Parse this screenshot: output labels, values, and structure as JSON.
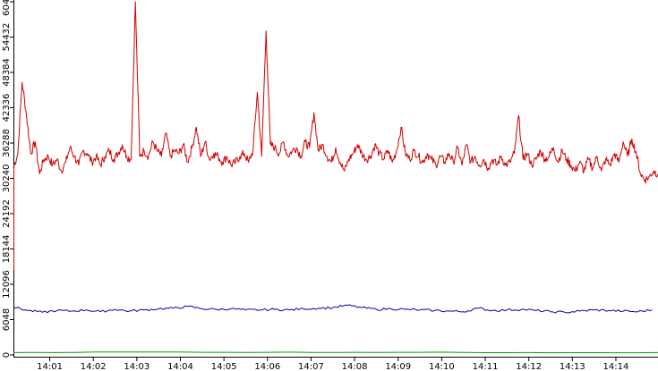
{
  "chart_data": {
    "type": "line",
    "x_ticks": [
      "14:01",
      "14:02",
      "14:03",
      "14:04",
      "14:05",
      "14:06",
      "14:07",
      "14:08",
      "14:09",
      "14:10",
      "14:11",
      "14:12",
      "14:13",
      "14:14"
    ],
    "y_ticks": [
      "0",
      "6048",
      "12096",
      "18144",
      "24192",
      "30240",
      "36288",
      "42336",
      "48384",
      "54432",
      "60480"
    ],
    "ylim": [
      0,
      60480
    ],
    "xlim": [
      "14:00:10",
      "14:14:58"
    ],
    "grid": false,
    "series": [
      {
        "color": "#d00000",
        "samples_per_step": 6,
        "points": [
          [
            "14:00:10",
            32000
          ],
          [
            "14:00:16",
            34500
          ],
          [
            "14:00:22",
            46700
          ],
          [
            "14:00:28",
            41000
          ],
          [
            "14:00:34",
            34500
          ],
          [
            "14:00:40",
            36500
          ],
          [
            "14:00:46",
            31000
          ],
          [
            "14:00:52",
            33500
          ],
          [
            "14:00:58",
            34000
          ],
          [
            "14:01:04",
            32500
          ],
          [
            "14:01:10",
            33500
          ],
          [
            "14:01:16",
            31500
          ],
          [
            "14:01:22",
            33000
          ],
          [
            "14:01:28",
            35500
          ],
          [
            "14:01:34",
            34000
          ],
          [
            "14:01:40",
            32500
          ],
          [
            "14:01:46",
            35000
          ],
          [
            "14:01:52",
            34500
          ],
          [
            "14:01:58",
            33000
          ],
          [
            "14:02:04",
            34000
          ],
          [
            "14:02:10",
            32500
          ],
          [
            "14:02:16",
            34000
          ],
          [
            "14:02:22",
            35000
          ],
          [
            "14:02:28",
            33500
          ],
          [
            "14:02:34",
            34500
          ],
          [
            "14:02:40",
            36000
          ],
          [
            "14:02:46",
            34000
          ],
          [
            "14:02:52",
            33500
          ],
          [
            "14:02:58",
            60480
          ],
          [
            "14:03:04",
            34000
          ],
          [
            "14:03:10",
            35000
          ],
          [
            "14:03:16",
            34000
          ],
          [
            "14:03:22",
            36500
          ],
          [
            "14:03:28",
            35000
          ],
          [
            "14:03:34",
            34000
          ],
          [
            "14:03:40",
            38000
          ],
          [
            "14:03:46",
            34000
          ],
          [
            "14:03:52",
            35000
          ],
          [
            "14:03:58",
            34500
          ],
          [
            "14:04:04",
            36000
          ],
          [
            "14:04:10",
            33000
          ],
          [
            "14:04:16",
            35500
          ],
          [
            "14:04:22",
            39000
          ],
          [
            "14:04:28",
            34000
          ],
          [
            "14:04:34",
            36500
          ],
          [
            "14:04:40",
            33500
          ],
          [
            "14:04:46",
            34500
          ],
          [
            "14:04:52",
            34000
          ],
          [
            "14:04:58",
            33000
          ],
          [
            "14:05:04",
            34000
          ],
          [
            "14:05:10",
            32500
          ],
          [
            "14:05:16",
            33000
          ],
          [
            "14:05:22",
            34000
          ],
          [
            "14:05:28",
            34500
          ],
          [
            "14:05:34",
            33000
          ],
          [
            "14:05:40",
            35000
          ],
          [
            "14:05:46",
            45000
          ],
          [
            "14:05:52",
            34000
          ],
          [
            "14:05:58",
            55500
          ],
          [
            "14:06:04",
            36000
          ],
          [
            "14:06:10",
            35500
          ],
          [
            "14:06:16",
            34500
          ],
          [
            "14:06:22",
            36500
          ],
          [
            "14:06:28",
            34000
          ],
          [
            "14:06:34",
            35000
          ],
          [
            "14:06:40",
            35500
          ],
          [
            "14:06:46",
            34000
          ],
          [
            "14:06:52",
            36500
          ],
          [
            "14:06:58",
            35500
          ],
          [
            "14:07:04",
            41500
          ],
          [
            "14:07:10",
            35000
          ],
          [
            "14:07:16",
            36000
          ],
          [
            "14:07:22",
            34000
          ],
          [
            "14:07:28",
            33000
          ],
          [
            "14:07:34",
            35500
          ],
          [
            "14:07:40",
            33000
          ],
          [
            "14:07:46",
            31500
          ],
          [
            "14:07:52",
            33500
          ],
          [
            "14:07:58",
            34500
          ],
          [
            "14:08:04",
            36000
          ],
          [
            "14:08:10",
            34500
          ],
          [
            "14:08:16",
            33500
          ],
          [
            "14:08:22",
            34000
          ],
          [
            "14:08:28",
            36000
          ],
          [
            "14:08:34",
            34500
          ],
          [
            "14:08:40",
            33500
          ],
          [
            "14:08:46",
            35000
          ],
          [
            "14:08:52",
            33000
          ],
          [
            "14:08:58",
            35000
          ],
          [
            "14:09:04",
            39000
          ],
          [
            "14:09:10",
            34500
          ],
          [
            "14:09:16",
            33500
          ],
          [
            "14:09:22",
            35000
          ],
          [
            "14:09:28",
            34000
          ],
          [
            "14:09:34",
            33000
          ],
          [
            "14:09:40",
            34500
          ],
          [
            "14:09:46",
            33500
          ],
          [
            "14:09:52",
            32500
          ],
          [
            "14:09:58",
            34000
          ],
          [
            "14:10:04",
            33000
          ],
          [
            "14:10:10",
            34500
          ],
          [
            "14:10:16",
            33000
          ],
          [
            "14:10:22",
            35500
          ],
          [
            "14:10:28",
            32500
          ],
          [
            "14:10:34",
            36000
          ],
          [
            "14:10:40",
            33000
          ],
          [
            "14:10:46",
            34000
          ],
          [
            "14:10:52",
            32500
          ],
          [
            "14:10:58",
            33500
          ],
          [
            "14:11:04",
            32000
          ],
          [
            "14:11:10",
            33500
          ],
          [
            "14:11:16",
            32500
          ],
          [
            "14:11:22",
            34000
          ],
          [
            "14:11:28",
            32500
          ],
          [
            "14:11:34",
            33000
          ],
          [
            "14:11:40",
            34500
          ],
          [
            "14:11:46",
            41000
          ],
          [
            "14:11:52",
            33500
          ],
          [
            "14:11:58",
            34500
          ],
          [
            "14:12:04",
            32500
          ],
          [
            "14:12:10",
            33500
          ],
          [
            "14:12:16",
            35000
          ],
          [
            "14:12:22",
            33500
          ],
          [
            "14:12:28",
            34000
          ],
          [
            "14:12:34",
            35500
          ],
          [
            "14:12:40",
            33000
          ],
          [
            "14:12:46",
            35000
          ],
          [
            "14:12:52",
            33500
          ],
          [
            "14:12:58",
            32500
          ],
          [
            "14:13:04",
            31500
          ],
          [
            "14:13:10",
            33000
          ],
          [
            "14:13:16",
            31500
          ],
          [
            "14:13:22",
            33500
          ],
          [
            "14:13:28",
            32000
          ],
          [
            "14:13:34",
            34000
          ],
          [
            "14:13:40",
            31500
          ],
          [
            "14:13:46",
            33500
          ],
          [
            "14:13:52",
            32500
          ],
          [
            "14:13:58",
            34500
          ],
          [
            "14:14:04",
            33000
          ],
          [
            "14:14:10",
            36500
          ],
          [
            "14:14:16",
            34000
          ],
          [
            "14:14:22",
            37000
          ],
          [
            "14:14:28",
            34500
          ],
          [
            "14:14:34",
            31000
          ],
          [
            "14:14:40",
            30000
          ],
          [
            "14:14:46",
            30500
          ],
          [
            "14:14:52",
            31500
          ],
          [
            "14:14:58",
            31000
          ]
        ]
      },
      {
        "color": "#0000b0",
        "samples_per_step": 6,
        "points": [
          [
            "14:00:10",
            8200
          ],
          [
            "14:00:30",
            7600
          ],
          [
            "14:00:50",
            7300
          ],
          [
            "14:01:10",
            7600
          ],
          [
            "14:01:30",
            7500
          ],
          [
            "14:01:50",
            7700
          ],
          [
            "14:02:10",
            7400
          ],
          [
            "14:02:30",
            7800
          ],
          [
            "14:02:50",
            7500
          ],
          [
            "14:03:10",
            7700
          ],
          [
            "14:03:30",
            7900
          ],
          [
            "14:03:50",
            8000
          ],
          [
            "14:04:10",
            8300
          ],
          [
            "14:04:30",
            7900
          ],
          [
            "14:04:50",
            7800
          ],
          [
            "14:05:10",
            7900
          ],
          [
            "14:05:30",
            7700
          ],
          [
            "14:05:50",
            7700
          ],
          [
            "14:06:10",
            7800
          ],
          [
            "14:06:30",
            7700
          ],
          [
            "14:06:50",
            7900
          ],
          [
            "14:07:10",
            8000
          ],
          [
            "14:07:30",
            8100
          ],
          [
            "14:07:50",
            8500
          ],
          [
            "14:08:10",
            8100
          ],
          [
            "14:08:30",
            7800
          ],
          [
            "14:08:50",
            7900
          ],
          [
            "14:09:10",
            7800
          ],
          [
            "14:09:30",
            7700
          ],
          [
            "14:09:50",
            7600
          ],
          [
            "14:10:10",
            7500
          ],
          [
            "14:10:30",
            7400
          ],
          [
            "14:10:50",
            8000
          ],
          [
            "14:11:10",
            7600
          ],
          [
            "14:11:30",
            7700
          ],
          [
            "14:11:50",
            7800
          ],
          [
            "14:12:10",
            7600
          ],
          [
            "14:12:30",
            7400
          ],
          [
            "14:12:50",
            7300
          ],
          [
            "14:13:10",
            7500
          ],
          [
            "14:13:30",
            7700
          ],
          [
            "14:13:50",
            7600
          ],
          [
            "14:14:10",
            7500
          ],
          [
            "14:14:30",
            7400
          ],
          [
            "14:14:50",
            7700
          ]
        ]
      },
      {
        "color": "#00a000",
        "samples_per_step": 6,
        "points": [
          [
            "14:00:10",
            400
          ],
          [
            "14:03:00",
            500
          ],
          [
            "14:06:00",
            450
          ],
          [
            "14:09:00",
            450
          ],
          [
            "14:12:00",
            400
          ],
          [
            "14:14:58",
            400
          ]
        ]
      }
    ]
  }
}
